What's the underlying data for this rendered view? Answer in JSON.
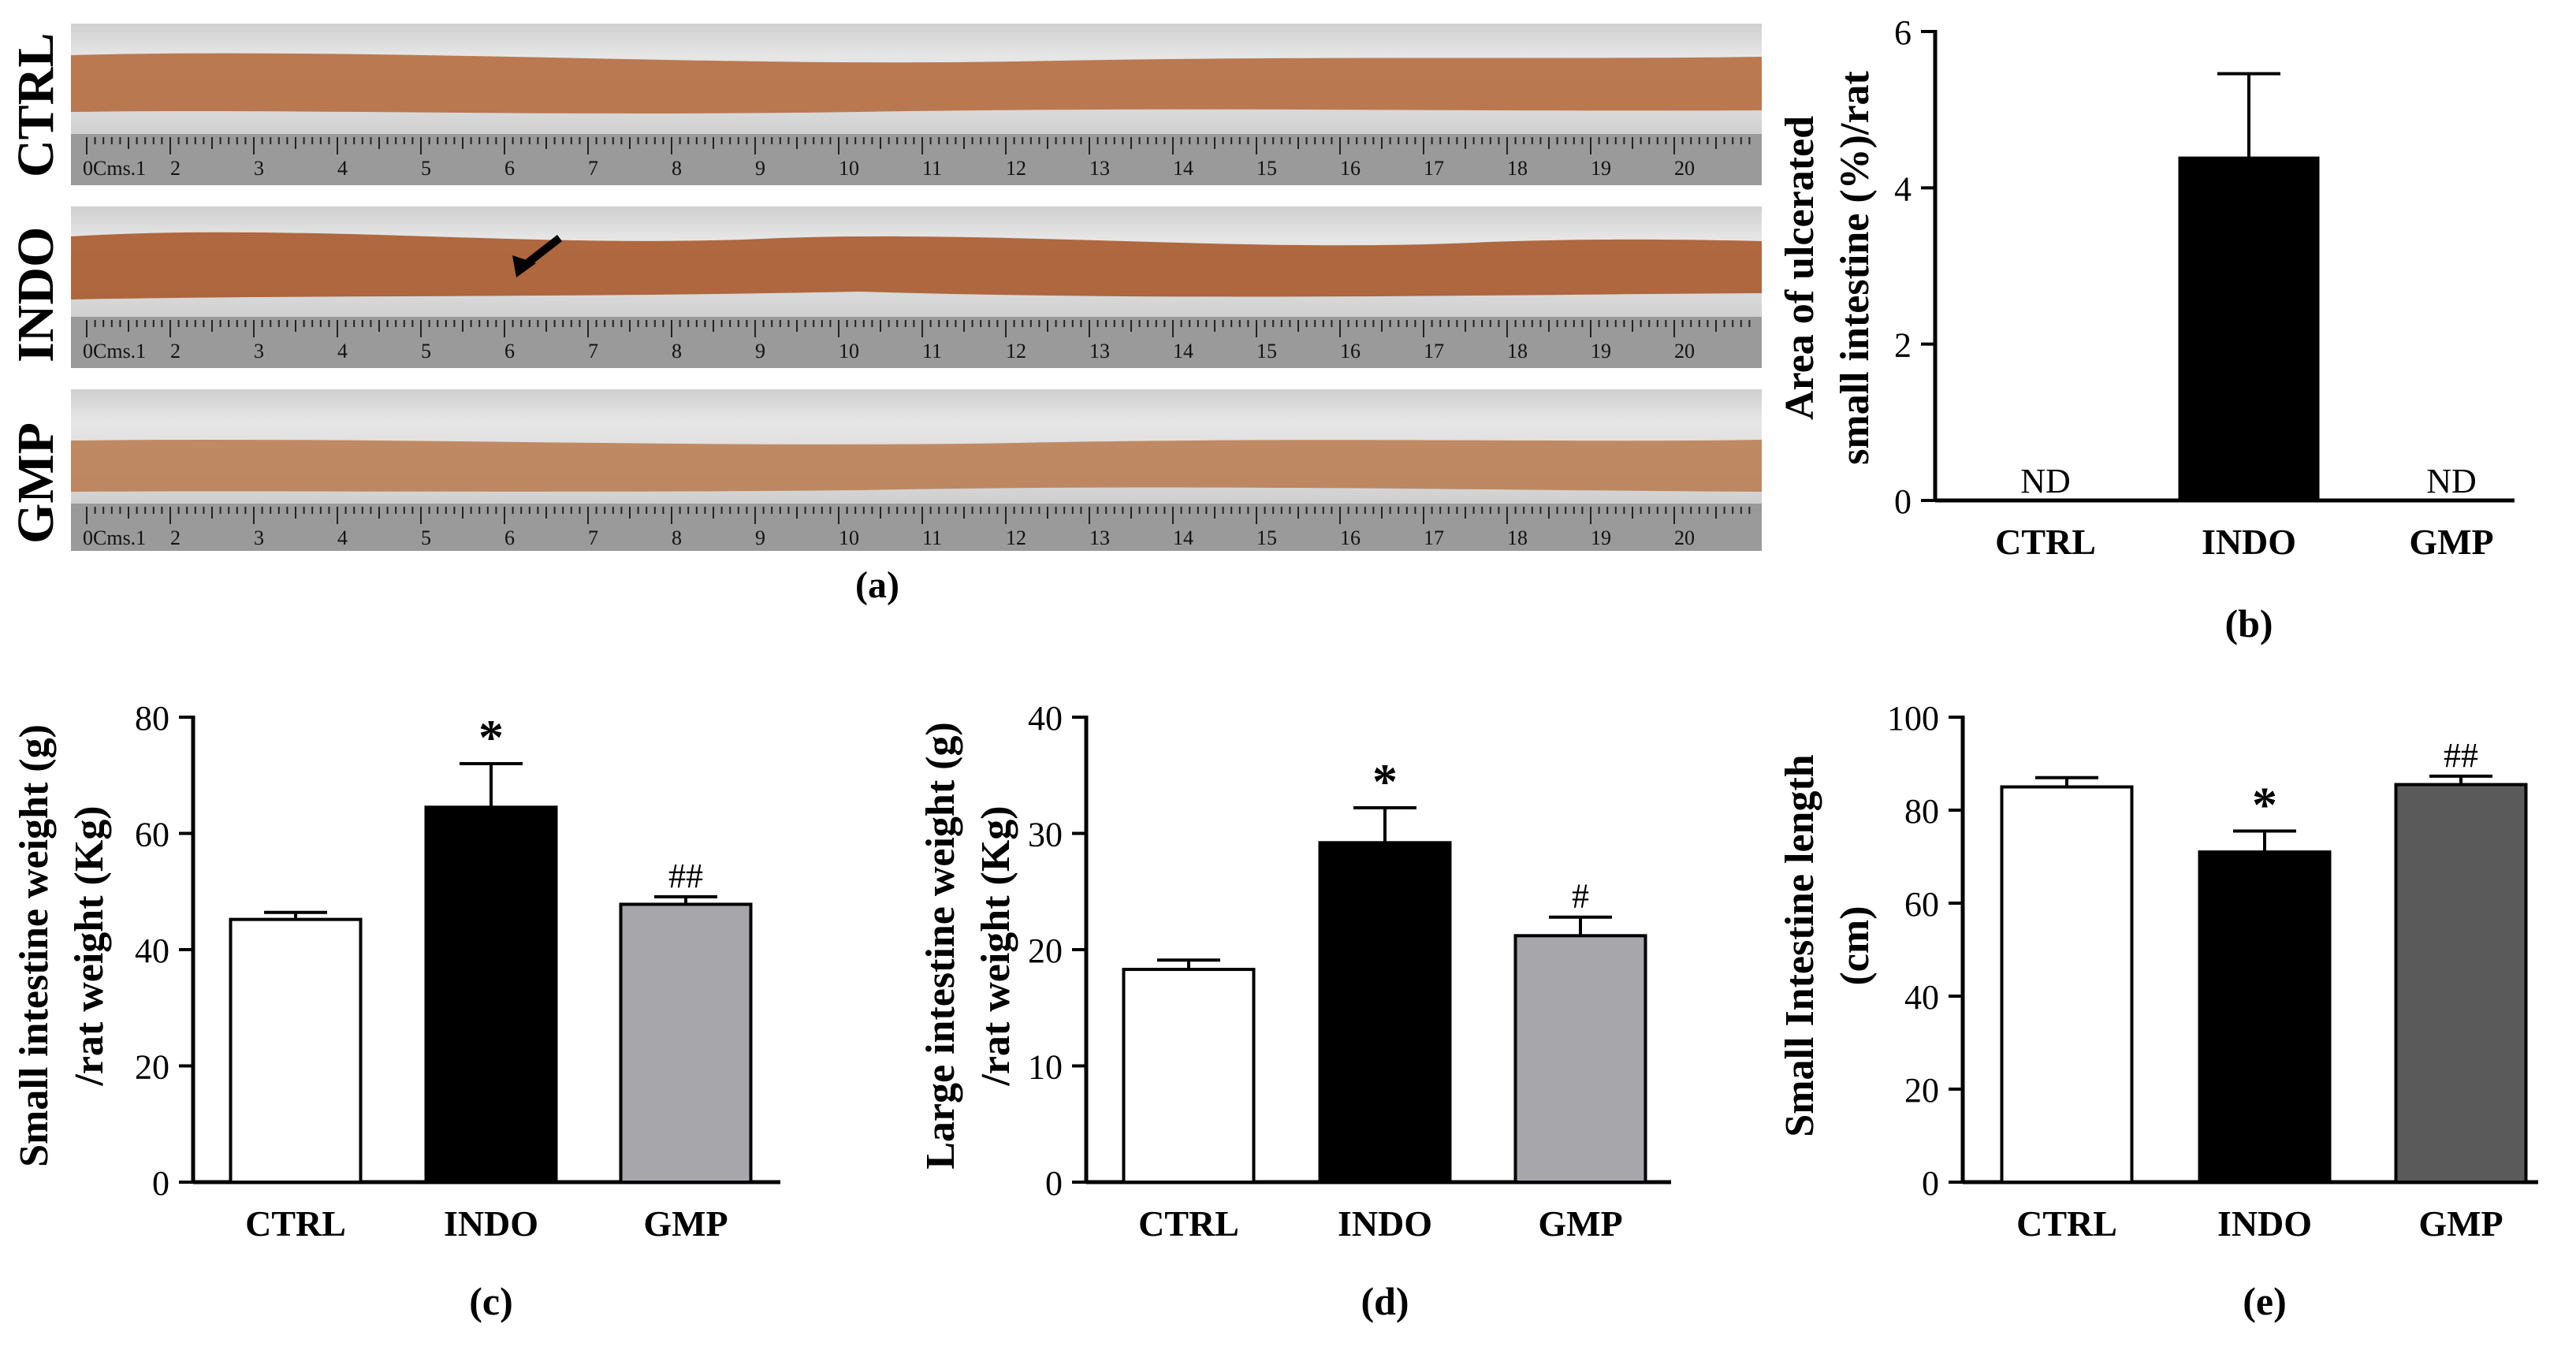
{
  "figure": {
    "panel_a": {
      "caption": "(a)",
      "strips": [
        {
          "label": "CTRL"
        },
        {
          "label": "INDO"
        },
        {
          "label": "GMP"
        }
      ],
      "ruler_ticks": [
        "0Cms.1",
        "2",
        "3",
        "4",
        "5",
        "6",
        "7",
        "8",
        "9",
        "10",
        "11",
        "12",
        "13",
        "14",
        "15",
        "16",
        "17",
        "18",
        "19",
        "20"
      ]
    },
    "colors": {
      "ctrl": "#ffffff",
      "indo": "#000000",
      "gmp_light": "#a6a6ab",
      "gmp_dark": "#5a5a5a",
      "tissue": "#b46a3c"
    }
  },
  "chart_data": [
    {
      "id": "b",
      "type": "bar",
      "caption": "(b)",
      "categories": [
        "CTRL",
        "INDO",
        "GMP"
      ],
      "values": [
        0,
        4.38,
        0
      ],
      "errors": [
        0,
        1.08,
        0
      ],
      "bar_labels": [
        "ND",
        "",
        "ND"
      ],
      "annotations": [
        "",
        "",
        ""
      ],
      "ylabel_lines": [
        "Area of ulcerated",
        "small intestine (%)/rat"
      ],
      "ylim": [
        0,
        6
      ],
      "yticks": [
        0,
        2,
        4,
        6
      ],
      "fills": [
        "#ffffff",
        "#000000",
        "#ffffff"
      ]
    },
    {
      "id": "c",
      "type": "bar",
      "caption": "(c)",
      "categories": [
        "CTRL",
        "INDO",
        "GMP"
      ],
      "values": [
        45.2,
        64.5,
        47.8
      ],
      "errors": [
        1.2,
        7.5,
        1.3
      ],
      "bar_labels": [
        "",
        "",
        ""
      ],
      "annotations": [
        "",
        "*",
        "##"
      ],
      "ylabel_lines": [
        "Small intestine weight (g)",
        "/rat weight (Kg)"
      ],
      "ylim": [
        0,
        80
      ],
      "yticks": [
        0,
        20,
        40,
        60,
        80
      ],
      "fills": [
        "#ffffff",
        "#000000",
        "#a6a6ab"
      ]
    },
    {
      "id": "d",
      "type": "bar",
      "caption": "(d)",
      "categories": [
        "CTRL",
        "INDO",
        "GMP"
      ],
      "values": [
        18.3,
        29.2,
        21.2
      ],
      "errors": [
        0.8,
        3.0,
        1.6
      ],
      "bar_labels": [
        "",
        "",
        ""
      ],
      "annotations": [
        "",
        "*",
        "#"
      ],
      "ylabel_lines": [
        "Large intestine weight (g)",
        "/rat weight (Kg)"
      ],
      "ylim": [
        0,
        40
      ],
      "yticks": [
        0,
        10,
        20,
        30,
        40
      ],
      "fills": [
        "#ffffff",
        "#000000",
        "#a6a6ab"
      ]
    },
    {
      "id": "e",
      "type": "bar",
      "caption": "(e)",
      "categories": [
        "CTRL",
        "INDO",
        "GMP"
      ],
      "values": [
        85,
        71,
        85.5
      ],
      "errors": [
        2,
        4.5,
        1.8
      ],
      "bar_labels": [
        "",
        "",
        ""
      ],
      "annotations": [
        "",
        "*",
        "##"
      ],
      "ylabel_lines": [
        "Small Intestine length",
        "(cm)"
      ],
      "ylim": [
        0,
        100
      ],
      "yticks": [
        0,
        20,
        40,
        60,
        80,
        100
      ],
      "fills": [
        "#ffffff",
        "#000000",
        "#5a5a5a"
      ]
    }
  ]
}
